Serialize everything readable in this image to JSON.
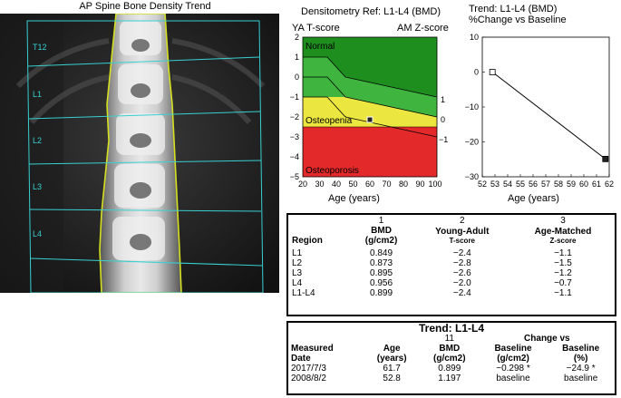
{
  "xray": {
    "title": "AP Spine Bone Density Trend",
    "levels": [
      "T12",
      "L1",
      "L2",
      "L3",
      "L4"
    ]
  },
  "densitometry": {
    "title": "Densitometry Ref: L1-L4 (BMD)",
    "left_axis_label": "YA T-score",
    "right_axis_label": "AM Z-score",
    "xlabel": "Age (years)",
    "y_ticks": [
      "2",
      "1",
      "0",
      "−1",
      "−2",
      "−3",
      "−4",
      "−5"
    ],
    "x_ticks": [
      "20",
      "30",
      "40",
      "50",
      "60",
      "70",
      "80",
      "90",
      "100"
    ],
    "right_ticks": [
      "1",
      "0",
      "−1"
    ],
    "zones": [
      "Normal",
      "Osteopenia",
      "Osteoporosis"
    ],
    "colors": {
      "normal": "#1e8f1e",
      "normal_light": "#3fb53f",
      "osteopenia": "#ece640",
      "osteoporosis": "#e3292a"
    },
    "point": {
      "age": 61.7,
      "t_score": -2.4
    }
  },
  "chart_data": {
    "type": "line",
    "title": "Trend: L1-L4 (BMD)",
    "subtitle": "%Change vs Baseline",
    "xlabel": "Age (years)",
    "ylabel": "",
    "x_ticks": [
      "52",
      "53",
      "54",
      "55",
      "56",
      "57",
      "58",
      "59",
      "60",
      "61",
      "62"
    ],
    "y_ticks": [
      "10",
      "0",
      "−10",
      "−20",
      "−30"
    ],
    "xlim": [
      52,
      62
    ],
    "ylim": [
      -30,
      10
    ],
    "series": [
      {
        "x": [
          52.8,
          61.7
        ],
        "values": [
          0,
          -24.9
        ]
      }
    ],
    "grid": false
  },
  "table1": {
    "col_numbers": [
      "1",
      "2",
      "3"
    ],
    "headers": {
      "region": "Region",
      "bmd": "BMD",
      "bmd_unit": "(g/cm2)",
      "ya": "Young-Adult",
      "ya_sub": "T-score",
      "am": "Age-Matched",
      "am_sub": "Z-score"
    },
    "rows": [
      {
        "region": "L1",
        "bmd": "0.849",
        "t": "−2.4",
        "z": "−1.1"
      },
      {
        "region": "L2",
        "bmd": "0.873",
        "t": "−2.8",
        "z": "−1.5"
      },
      {
        "region": "L3",
        "bmd": "0.895",
        "t": "−2.6",
        "z": "−1.2"
      },
      {
        "region": "L4",
        "bmd": "0.956",
        "t": "−2.0",
        "z": "−0.7"
      },
      {
        "region": "L1-L4",
        "bmd": "0.899",
        "t": "−2.4",
        "z": "−1.1"
      }
    ]
  },
  "table2": {
    "title": "Trend: L1-L4",
    "col_number": "11",
    "headers": {
      "date1": "Measured",
      "date2": "Date",
      "age1": "Age",
      "age2": "(years)",
      "bmd1": "BMD",
      "bmd2": "(g/cm2)",
      "change": "Change vs",
      "b1a": "Baseline",
      "b1b": "(g/cm2)",
      "b2a": "Baseline",
      "b2b": "(%)"
    },
    "rows": [
      {
        "date": "2017/7/3",
        "age": "61.7",
        "bmd": "0.899",
        "chg_g": "−0.298 *",
        "chg_pct": "−24.9 *"
      },
      {
        "date": "2008/8/2",
        "age": "52.8",
        "bmd": "1.197",
        "chg_g": "baseline",
        "chg_pct": "baseline"
      }
    ]
  }
}
